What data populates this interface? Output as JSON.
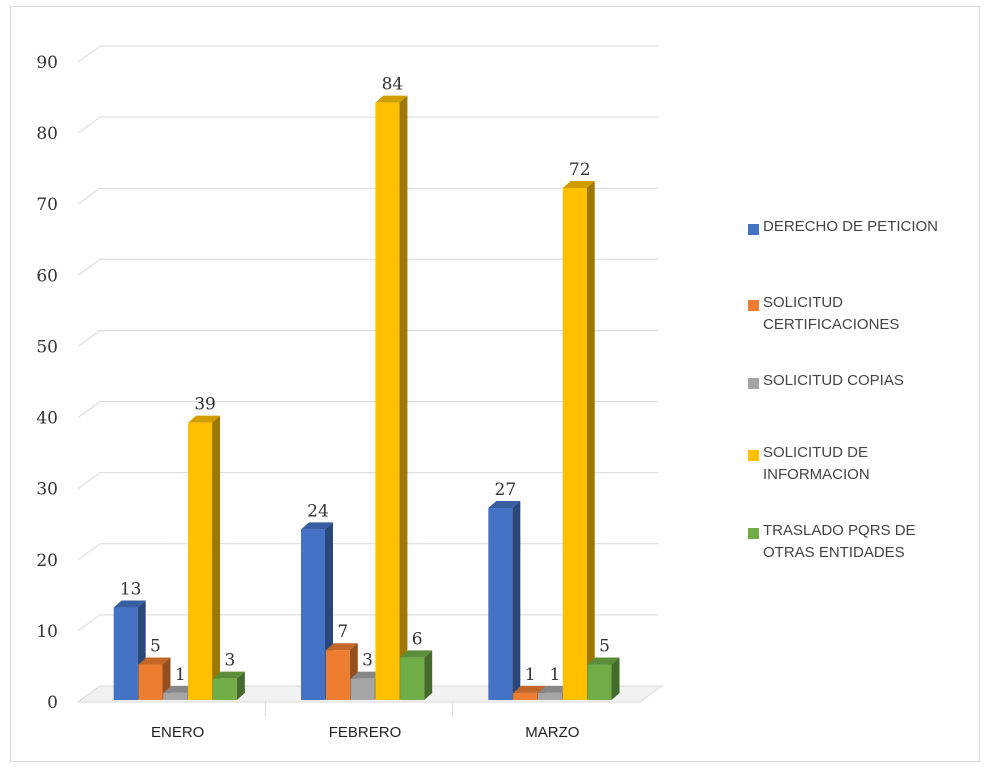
{
  "chart_data": {
    "type": "bar",
    "categories": [
      "ENERO",
      "FEBRERO",
      "MARZO"
    ],
    "series": [
      {
        "name": "DERECHO DE PETICION",
        "values": [
          13,
          24,
          27
        ],
        "color": "#4472C4"
      },
      {
        "name": "SOLICITUD CERTIFICACIONES",
        "values": [
          5,
          7,
          1
        ],
        "color": "#ED7D31"
      },
      {
        "name": "SOLICITUD COPIAS",
        "values": [
          1,
          3,
          1
        ],
        "color": "#A5A5A5"
      },
      {
        "name": "SOLICITUD DE INFORMACION",
        "values": [
          39,
          84,
          72
        ],
        "color": "#FFC000"
      },
      {
        "name": "TRASLADO PQRS DE OTRAS ENTIDADES",
        "values": [
          3,
          6,
          5
        ],
        "color": "#70AD47"
      }
    ],
    "ylim": [
      0,
      90
    ],
    "yticks": [
      "0",
      "10",
      "20",
      "30",
      "40",
      "50",
      "60",
      "70",
      "80",
      "90"
    ],
    "grid": true,
    "legend_position": "right",
    "style": "3d-columns"
  }
}
